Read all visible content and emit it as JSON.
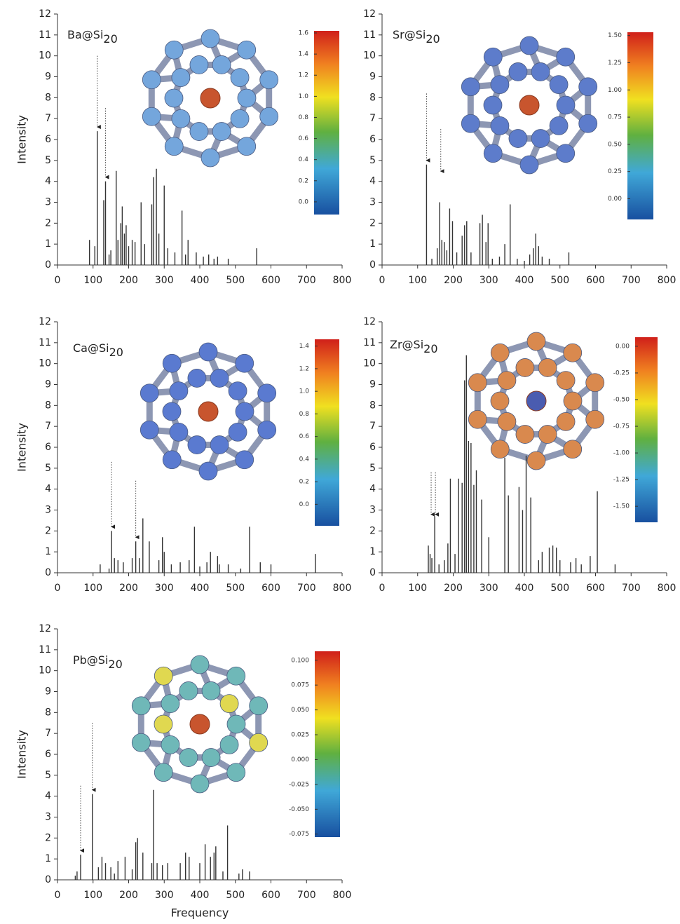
{
  "chart_data": [
    {
      "type": "stick",
      "title": "Ba@Si",
      "title_subscript": "20",
      "ylabel": "Intensity",
      "color": "#333333",
      "x": [
        90,
        105,
        112,
        130,
        135,
        145,
        150,
        165,
        170,
        178,
        182,
        188,
        193,
        200,
        210,
        218,
        235,
        245,
        265,
        270,
        278,
        285,
        300,
        310,
        330,
        350,
        360,
        367,
        390,
        410,
        425,
        440,
        450,
        480,
        560
      ],
      "values": [
        1.2,
        0.9,
        6.4,
        3.1,
        4.0,
        0.5,
        0.7,
        4.5,
        1.2,
        2.0,
        2.8,
        1.5,
        1.9,
        0.9,
        1.2,
        1.1,
        3.0,
        1.0,
        2.9,
        4.2,
        4.6,
        1.5,
        3.8,
        0.8,
        0.6,
        2.6,
        0.5,
        1.2,
        0.6,
        0.4,
        0.5,
        0.3,
        0.4,
        0.3,
        0.8
      ],
      "arrows": [
        {
          "x": 112,
          "from": 10
        },
        {
          "x": 135,
          "from": 7.5
        }
      ],
      "xlim": [
        0,
        800
      ],
      "xticks": [
        0,
        100,
        200,
        300,
        400,
        500,
        600,
        700,
        800
      ],
      "ylim": [
        0,
        12
      ],
      "yticks": [
        0,
        1,
        2,
        3,
        4,
        5,
        6,
        7,
        8,
        9,
        10,
        11,
        12
      ],
      "colorbar": {
        "lim": [
          -0.12,
          1.62
        ],
        "ticks": [
          {
            "value": 0,
            "label": "0.0"
          },
          {
            "value": 0.2,
            "label": "0.2"
          },
          {
            "value": 0.4,
            "label": "0.4"
          },
          {
            "value": 0.6,
            "label": "0.6"
          },
          {
            "value": 0.8,
            "label": "0.8"
          },
          {
            "value": 1.0,
            "label": "1.0"
          },
          {
            "value": 1.2,
            "label": "1.2"
          },
          {
            "value": 1.4,
            "label": "1.4"
          },
          {
            "value": 1.6,
            "label": "1.6"
          }
        ]
      }
    },
    {
      "type": "stick",
      "title": "Sr@Si",
      "title_subscript": "20",
      "color": "#333333",
      "x": [
        125,
        140,
        155,
        162,
        168,
        175,
        182,
        190,
        198,
        210,
        225,
        232,
        238,
        250,
        275,
        282,
        292,
        298,
        310,
        330,
        345,
        360,
        380,
        400,
        415,
        425,
        432,
        440,
        450,
        470,
        525
      ],
      "values": [
        4.8,
        0.3,
        0.8,
        3.0,
        1.2,
        1.1,
        0.7,
        2.7,
        2.1,
        0.6,
        1.4,
        1.9,
        2.1,
        0.6,
        2.0,
        2.4,
        1.1,
        2.0,
        0.3,
        0.4,
        1.0,
        2.9,
        0.3,
        0.2,
        0.5,
        0.8,
        1.5,
        0.9,
        0.4,
        0.3,
        0.6
      ],
      "arrows": [
        {
          "x": 125,
          "from": 8.2
        },
        {
          "x": 165,
          "from": 6.5
        }
      ],
      "xlim": [
        0,
        800
      ],
      "xticks": [
        0,
        100,
        200,
        300,
        400,
        500,
        600,
        700,
        800
      ],
      "ylim": [
        0,
        12
      ],
      "yticks": [
        0,
        1,
        2,
        3,
        4,
        5,
        6,
        7,
        8,
        9,
        10,
        11,
        12
      ],
      "colorbar": {
        "lim": [
          -0.19,
          1.53
        ],
        "ticks": [
          {
            "value": 0,
            "label": "0.00"
          },
          {
            "value": 0.25,
            "label": "0.25"
          },
          {
            "value": 0.5,
            "label": "0.50"
          },
          {
            "value": 0.75,
            "label": "0.75"
          },
          {
            "value": 1.0,
            "label": "1.00"
          },
          {
            "value": 1.25,
            "label": "1.25"
          },
          {
            "value": 1.5,
            "label": "1.50"
          }
        ]
      }
    },
    {
      "type": "stick",
      "title": "Ca@Si",
      "title_subscript": "20",
      "ylabel": "Intensity",
      "color": "#333333",
      "x": [
        120,
        145,
        152,
        160,
        170,
        185,
        210,
        220,
        230,
        240,
        258,
        285,
        295,
        300,
        320,
        345,
        370,
        385,
        400,
        420,
        430,
        450,
        455,
        480,
        515,
        540,
        570,
        600,
        725
      ],
      "values": [
        0.4,
        0.2,
        2.0,
        0.7,
        0.6,
        0.5,
        0.7,
        1.5,
        0.7,
        2.6,
        1.5,
        0.6,
        1.7,
        1.0,
        0.4,
        0.5,
        0.6,
        2.2,
        0.3,
        0.5,
        1.0,
        0.8,
        0.4,
        0.4,
        0.2,
        2.2,
        0.5,
        0.4,
        0.9
      ],
      "arrows": [
        {
          "x": 152,
          "from": 5.3
        },
        {
          "x": 220,
          "from": 4.4
        }
      ],
      "xlim": [
        0,
        800
      ],
      "xticks": [
        0,
        100,
        200,
        300,
        400,
        500,
        600,
        700,
        800
      ],
      "ylim": [
        0,
        12
      ],
      "yticks": [
        0,
        1,
        2,
        3,
        4,
        5,
        6,
        7,
        8,
        9,
        10,
        11,
        12
      ],
      "colorbar": {
        "lim": [
          -0.19,
          1.46
        ],
        "ticks": [
          {
            "value": 0,
            "label": "0.0"
          },
          {
            "value": 0.2,
            "label": "0.2"
          },
          {
            "value": 0.4,
            "label": "0.4"
          },
          {
            "value": 0.6,
            "label": "0.6"
          },
          {
            "value": 0.8,
            "label": "0.8"
          },
          {
            "value": 1.0,
            "label": "1.0"
          },
          {
            "value": 1.2,
            "label": "1.2"
          },
          {
            "value": 1.4,
            "label": "1.4"
          }
        ]
      }
    },
    {
      "type": "stick",
      "title": "Zr@Si",
      "title_subscript": "20",
      "color": "#333333",
      "x": [
        130,
        135,
        140,
        148,
        160,
        175,
        185,
        192,
        205,
        215,
        225,
        232,
        237,
        243,
        250,
        258,
        265,
        280,
        300,
        345,
        355,
        385,
        395,
        405,
        418,
        440,
        450,
        470,
        480,
        490,
        500,
        530,
        545,
        560,
        585,
        605,
        655
      ],
      "values": [
        1.3,
        0.9,
        0.7,
        2.7,
        0.4,
        0.6,
        1.4,
        4.5,
        0.9,
        4.5,
        4.3,
        9.2,
        10.4,
        6.3,
        6.2,
        4.2,
        4.9,
        3.5,
        1.7,
        5.5,
        3.7,
        4.1,
        3.0,
        5.6,
        3.6,
        0.6,
        1.0,
        1.2,
        1.3,
        1.2,
        0.6,
        0.5,
        0.7,
        0.4,
        0.8,
        3.9,
        0.4
      ],
      "arrows": [
        {
          "x": 138,
          "from": 4.8
        },
        {
          "x": 150,
          "from": 4.8
        }
      ],
      "xlim": [
        0,
        800
      ],
      "xticks": [
        0,
        100,
        200,
        300,
        400,
        500,
        600,
        700,
        800
      ],
      "ylim": [
        0,
        12
      ],
      "yticks": [
        0,
        1,
        2,
        3,
        4,
        5,
        6,
        7,
        8,
        9,
        10,
        11,
        12
      ],
      "colorbar": {
        "lim": [
          -1.65,
          0.085
        ],
        "ticks": [
          {
            "value": 0,
            "label": "0.00"
          },
          -0.25,
          {
            "value": -0.5,
            "label": "-0.50"
          },
          -0.75,
          {
            "value": -1.0,
            "label": "-1.00"
          },
          -1.25,
          {
            "value": -1.5,
            "label": "-1.50"
          }
        ]
      }
    },
    {
      "type": "stick",
      "title": "Pb@Si",
      "title_subscript": "20",
      "ylabel": "Intensity",
      "xlabel": "Frequency",
      "color": "#333333",
      "x": [
        50,
        55,
        65,
        98,
        115,
        125,
        135,
        150,
        160,
        170,
        190,
        210,
        220,
        225,
        240,
        265,
        270,
        280,
        295,
        310,
        345,
        360,
        370,
        400,
        415,
        430,
        440,
        445,
        465,
        478,
        510,
        520,
        540
      ],
      "values": [
        0.2,
        0.4,
        1.2,
        4.1,
        0.6,
        1.1,
        0.8,
        0.6,
        0.3,
        0.9,
        1.1,
        0.5,
        1.8,
        2.0,
        1.3,
        0.8,
        4.3,
        0.8,
        0.7,
        0.8,
        0.8,
        1.3,
        1.1,
        0.8,
        1.7,
        1.1,
        1.3,
        1.6,
        0.4,
        2.6,
        0.3,
        0.5,
        0.4
      ],
      "arrows": [
        {
          "x": 65,
          "from": 4.5
        },
        {
          "x": 98,
          "from": 7.5
        }
      ],
      "xlim": [
        0,
        800
      ],
      "xticks": [
        0,
        100,
        200,
        300,
        400,
        500,
        600,
        700,
        800
      ],
      "ylim": [
        0,
        12
      ],
      "yticks": [
        0,
        1,
        2,
        3,
        4,
        5,
        6,
        7,
        8,
        9,
        10,
        11,
        12
      ],
      "colorbar": {
        "lim": [
          -0.078,
          0.109
        ],
        "ticks": [
          {
            "value": 0.1,
            "label": "0.100"
          },
          {
            "value": 0.075,
            "label": "0.075"
          },
          {
            "value": 0.05,
            "label": "0.050"
          },
          {
            "value": 0.025,
            "label": "0.025"
          },
          {
            "value": 0,
            "label": "0.000"
          },
          {
            "value": -0.025,
            "label": "-0.025"
          },
          {
            "value": -0.05,
            "label": "-0.050"
          },
          {
            "value": -0.075,
            "label": "-0.075"
          }
        ]
      }
    }
  ]
}
